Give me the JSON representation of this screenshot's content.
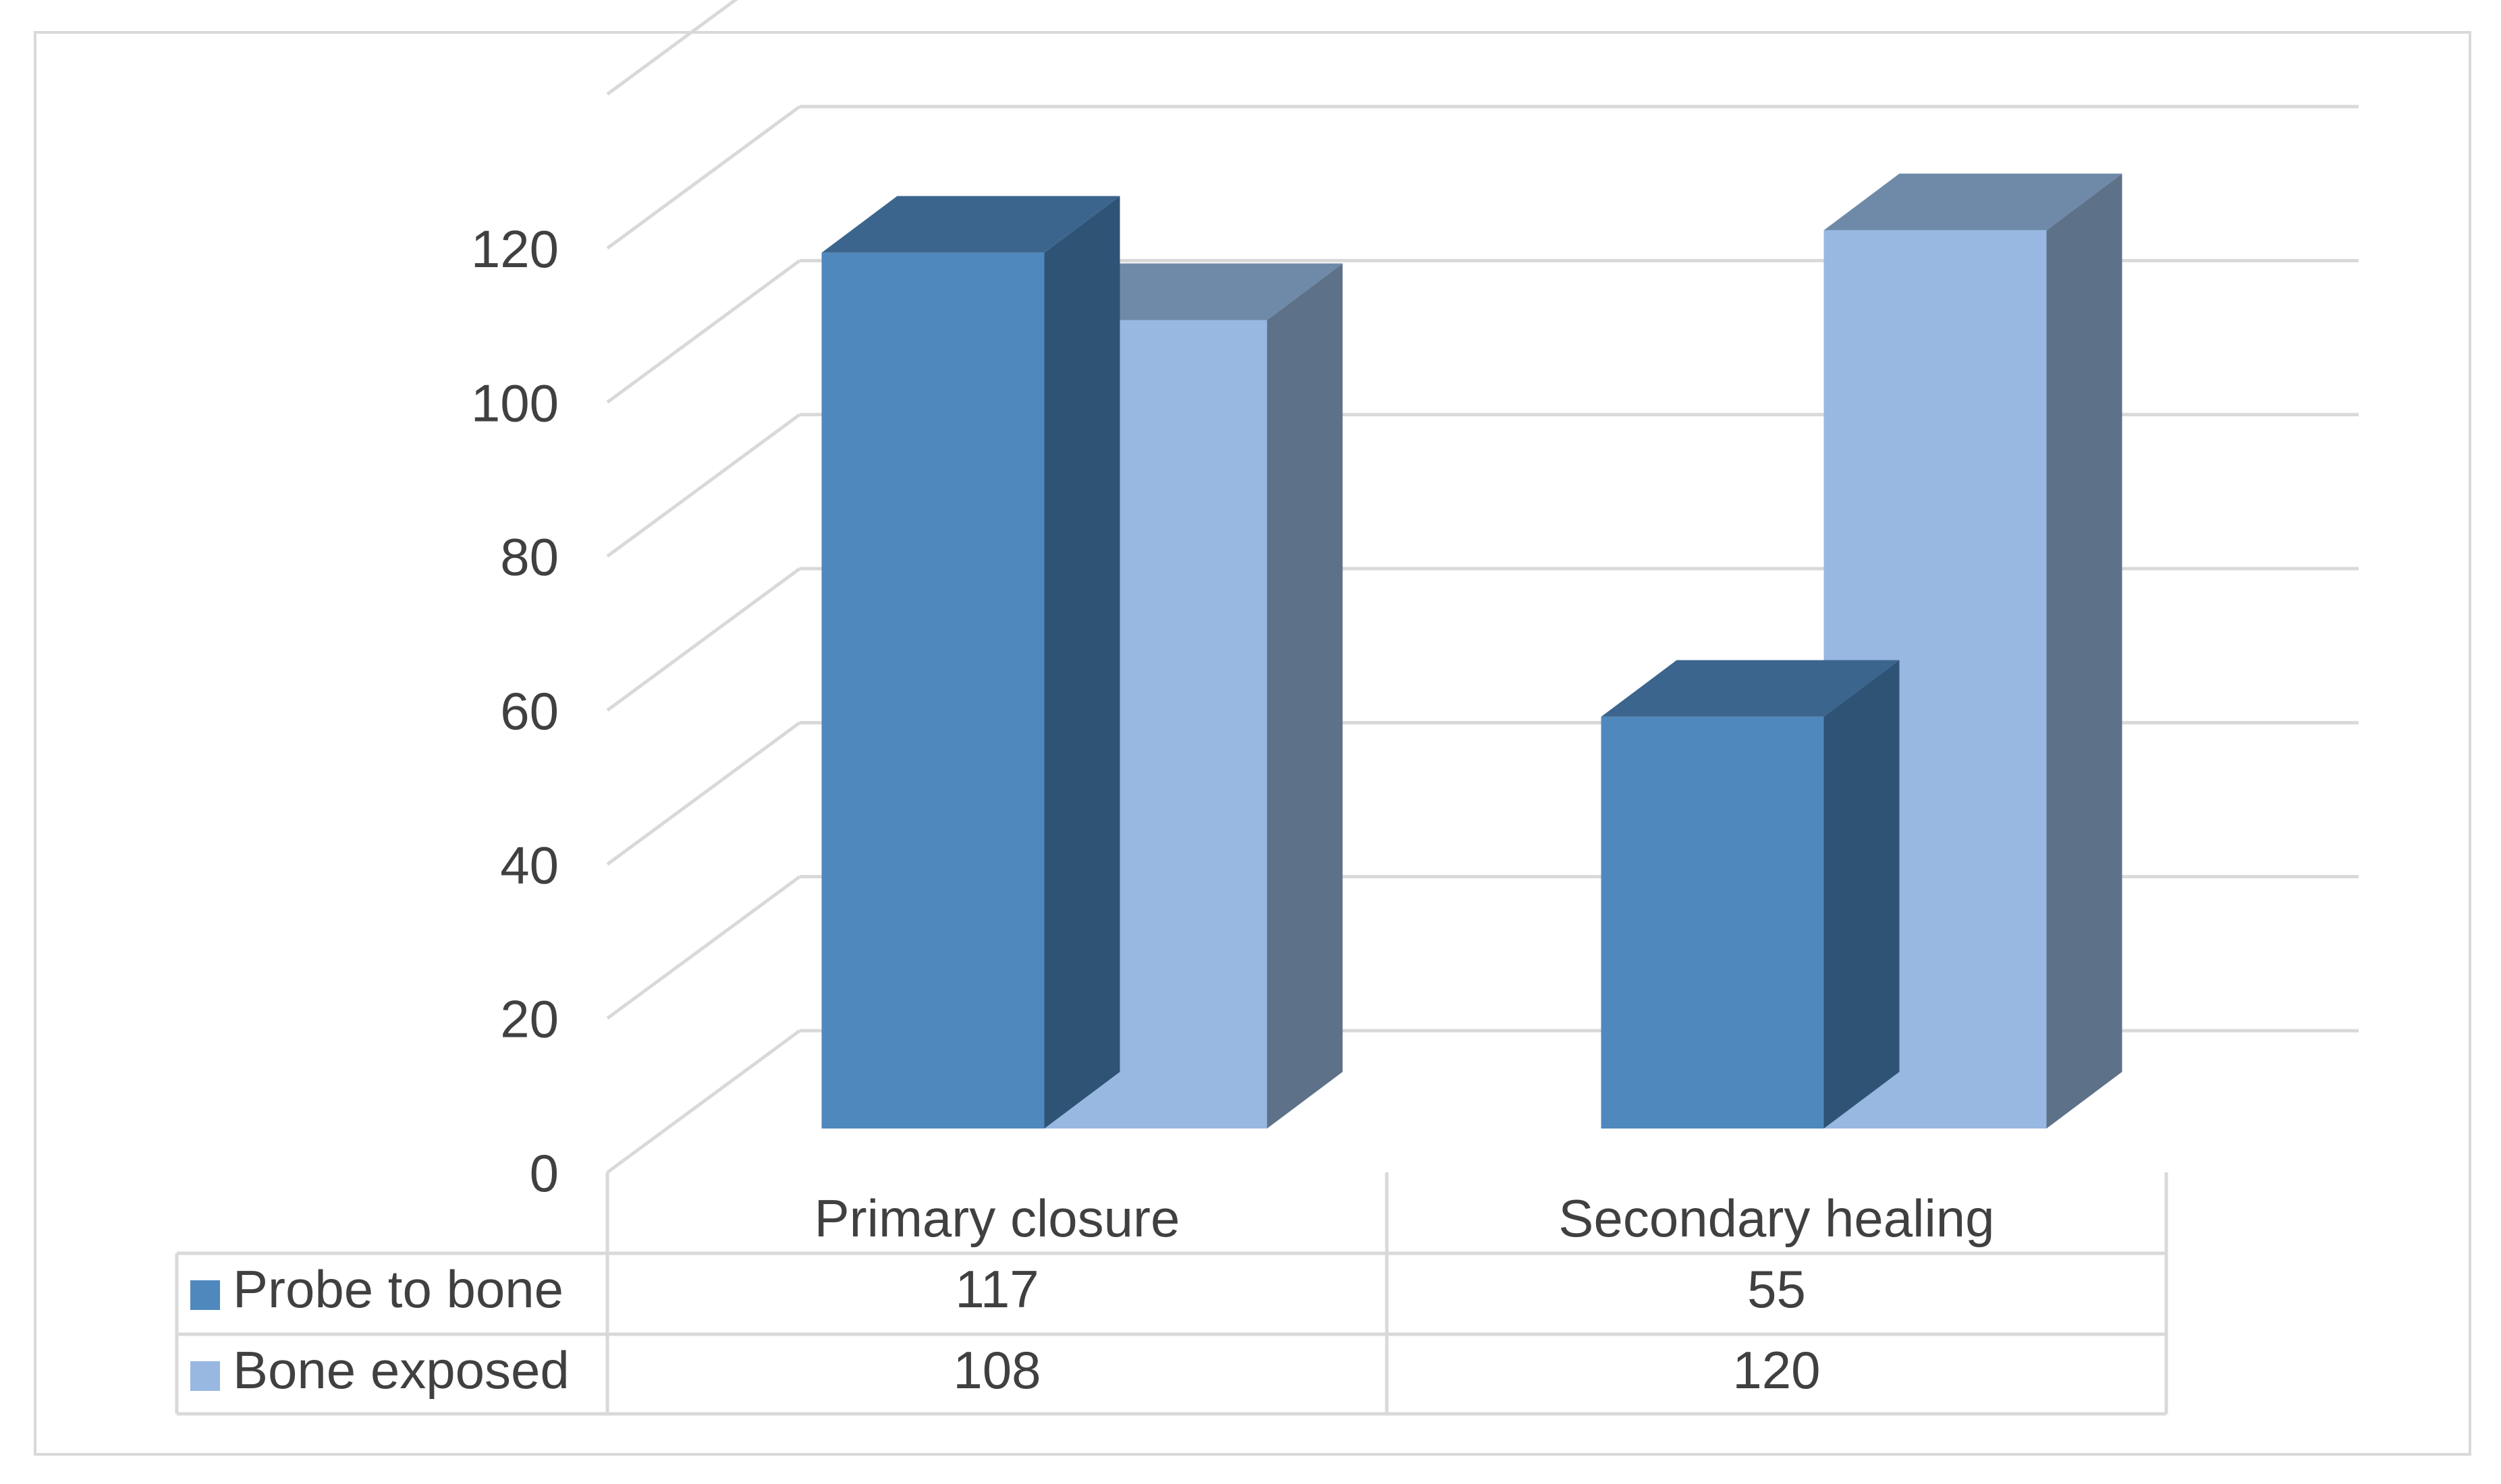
{
  "chart_data": {
    "type": "bar",
    "style": "3d-clustered-column-with-data-table",
    "title": "",
    "xlabel": "",
    "ylabel": "",
    "ylim": [
      0,
      120
    ],
    "yticks": [
      0,
      20,
      40,
      60,
      80,
      100,
      120
    ],
    "grid": true,
    "categories": [
      "Primary closure",
      "Secondary healing"
    ],
    "series": [
      {
        "name": "Probe to bone",
        "values": [
          117,
          55
        ],
        "color": "#4f88bd",
        "top_color": "#3b658d",
        "side_color": "#2f5375"
      },
      {
        "name": "Bone exposed",
        "values": [
          108,
          120
        ],
        "color": "#98b8e1",
        "top_color": "#6f8aa8",
        "side_color": "#5d7189"
      }
    ],
    "legend_placement": "data-table-left"
  }
}
